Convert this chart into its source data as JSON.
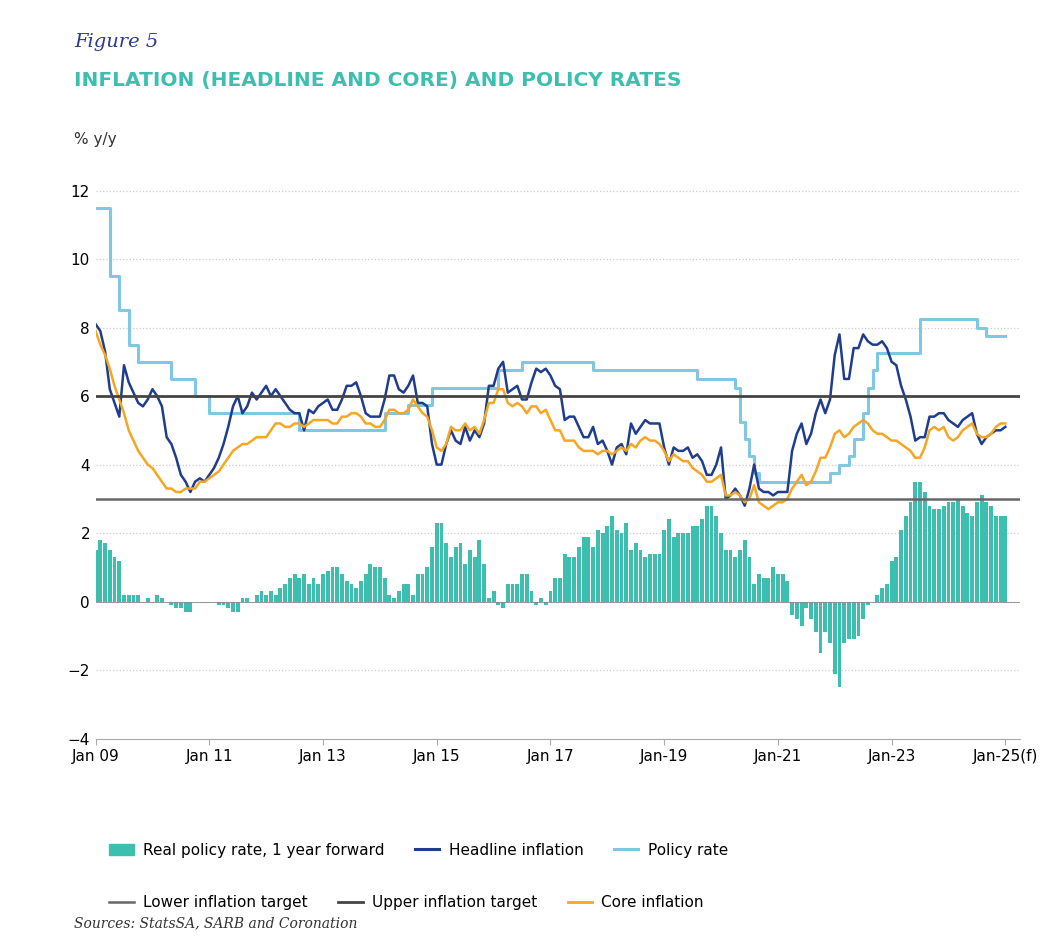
{
  "title_figure": "Figure 5",
  "title_main": "INFLATION (HEADLINE AND CORE) AND POLICY RATES",
  "ylabel": "% y/y",
  "source": "Sources: StatsSA, SARB and Coronation",
  "ylim": [
    -4,
    13
  ],
  "yticks": [
    -4,
    -2,
    0,
    2,
    4,
    6,
    8,
    10,
    12
  ],
  "lower_target": 3,
  "upper_target": 6,
  "colors": {
    "headline": "#1f3d8c",
    "policy_rate": "#7ec8e3",
    "core": "#f5a623",
    "real_policy": "#3dbfb0",
    "lower_target": "#666666",
    "upper_target": "#444444",
    "background": "#ffffff",
    "grid": "#cccccc",
    "title_figure": "#2d3a8c",
    "title_main": "#3dbfb0"
  },
  "xtick_labels": [
    "Jan 09",
    "Jan 11",
    "Jan 13",
    "Jan 15",
    "Jan 17",
    "Jan-19",
    "Jan-21",
    "Jan-23",
    "Jan-25(f)"
  ],
  "xtick_positions": [
    2009.0,
    2011.0,
    2013.0,
    2015.0,
    2017.0,
    2019.0,
    2021.0,
    2023.0,
    2025.0
  ],
  "headline_inflation_dates": [
    2009.0,
    2009.083,
    2009.167,
    2009.25,
    2009.333,
    2009.417,
    2009.5,
    2009.583,
    2009.667,
    2009.75,
    2009.833,
    2009.917,
    2010.0,
    2010.083,
    2010.167,
    2010.25,
    2010.333,
    2010.417,
    2010.5,
    2010.583,
    2010.667,
    2010.75,
    2010.833,
    2010.917,
    2011.0,
    2011.083,
    2011.167,
    2011.25,
    2011.333,
    2011.417,
    2011.5,
    2011.583,
    2011.667,
    2011.75,
    2011.833,
    2011.917,
    2012.0,
    2012.083,
    2012.167,
    2012.25,
    2012.333,
    2012.417,
    2012.5,
    2012.583,
    2012.667,
    2012.75,
    2012.833,
    2012.917,
    2013.0,
    2013.083,
    2013.167,
    2013.25,
    2013.333,
    2013.417,
    2013.5,
    2013.583,
    2013.667,
    2013.75,
    2013.833,
    2013.917,
    2014.0,
    2014.083,
    2014.167,
    2014.25,
    2014.333,
    2014.417,
    2014.5,
    2014.583,
    2014.667,
    2014.75,
    2014.833,
    2014.917,
    2015.0,
    2015.083,
    2015.167,
    2015.25,
    2015.333,
    2015.417,
    2015.5,
    2015.583,
    2015.667,
    2015.75,
    2015.833,
    2015.917,
    2016.0,
    2016.083,
    2016.167,
    2016.25,
    2016.333,
    2016.417,
    2016.5,
    2016.583,
    2016.667,
    2016.75,
    2016.833,
    2016.917,
    2017.0,
    2017.083,
    2017.167,
    2017.25,
    2017.333,
    2017.417,
    2017.5,
    2017.583,
    2017.667,
    2017.75,
    2017.833,
    2017.917,
    2018.0,
    2018.083,
    2018.167,
    2018.25,
    2018.333,
    2018.417,
    2018.5,
    2018.583,
    2018.667,
    2018.75,
    2018.833,
    2018.917,
    2019.0,
    2019.083,
    2019.167,
    2019.25,
    2019.333,
    2019.417,
    2019.5,
    2019.583,
    2019.667,
    2019.75,
    2019.833,
    2019.917,
    2020.0,
    2020.083,
    2020.167,
    2020.25,
    2020.333,
    2020.417,
    2020.5,
    2020.583,
    2020.667,
    2020.75,
    2020.833,
    2020.917,
    2021.0,
    2021.083,
    2021.167,
    2021.25,
    2021.333,
    2021.417,
    2021.5,
    2021.583,
    2021.667,
    2021.75,
    2021.833,
    2021.917,
    2022.0,
    2022.083,
    2022.167,
    2022.25,
    2022.333,
    2022.417,
    2022.5,
    2022.583,
    2022.667,
    2022.75,
    2022.833,
    2022.917,
    2023.0,
    2023.083,
    2023.167,
    2023.25,
    2023.333,
    2023.417,
    2023.5,
    2023.583,
    2023.667,
    2023.75,
    2023.833,
    2023.917,
    2024.0,
    2024.083,
    2024.167,
    2024.25,
    2024.333,
    2024.417,
    2024.5,
    2024.583,
    2024.667,
    2024.75,
    2024.833,
    2024.917,
    2025.0
  ],
  "headline_inflation_values": [
    8.1,
    7.9,
    7.3,
    6.2,
    5.8,
    5.4,
    6.9,
    6.4,
    6.1,
    5.8,
    5.7,
    5.9,
    6.2,
    6.0,
    5.7,
    4.8,
    4.6,
    4.2,
    3.7,
    3.5,
    3.2,
    3.5,
    3.6,
    3.5,
    3.7,
    3.9,
    4.2,
    4.6,
    5.1,
    5.7,
    6.0,
    5.5,
    5.7,
    6.1,
    5.9,
    6.1,
    6.3,
    6.0,
    6.2,
    6.0,
    5.8,
    5.6,
    5.5,
    5.5,
    5.0,
    5.6,
    5.5,
    5.7,
    5.8,
    5.9,
    5.6,
    5.6,
    5.9,
    6.3,
    6.3,
    6.4,
    6.0,
    5.5,
    5.4,
    5.4,
    5.4,
    5.9,
    6.6,
    6.6,
    6.2,
    6.1,
    6.3,
    6.6,
    5.8,
    5.8,
    5.7,
    4.6,
    4.0,
    4.0,
    4.6,
    5.0,
    4.7,
    4.6,
    5.1,
    4.7,
    5.0,
    4.8,
    5.2,
    6.3,
    6.3,
    6.8,
    7.0,
    6.1,
    6.2,
    6.3,
    5.9,
    5.9,
    6.4,
    6.8,
    6.7,
    6.8,
    6.6,
    6.3,
    6.2,
    5.3,
    5.4,
    5.4,
    5.1,
    4.8,
    4.8,
    5.1,
    4.6,
    4.7,
    4.4,
    4.0,
    4.5,
    4.6,
    4.3,
    5.2,
    4.9,
    5.1,
    5.3,
    5.2,
    5.2,
    5.2,
    4.5,
    4.0,
    4.5,
    4.4,
    4.4,
    4.5,
    4.2,
    4.3,
    4.1,
    3.7,
    3.7,
    4.0,
    4.5,
    3.0,
    3.1,
    3.3,
    3.1,
    2.8,
    3.3,
    4.0,
    3.3,
    3.2,
    3.2,
    3.1,
    3.2,
    3.2,
    3.2,
    4.4,
    4.9,
    5.2,
    4.6,
    4.9,
    5.5,
    5.9,
    5.5,
    5.9,
    7.2,
    7.8,
    6.5,
    6.5,
    7.4,
    7.4,
    7.8,
    7.6,
    7.5,
    7.5,
    7.6,
    7.4,
    7.0,
    6.9,
    6.3,
    5.9,
    5.4,
    4.7,
    4.8,
    4.8,
    5.4,
    5.4,
    5.5,
    5.5,
    5.3,
    5.2,
    5.1,
    5.3,
    5.4,
    5.5,
    4.9,
    4.6,
    4.8,
    4.9,
    5.0,
    5.0,
    5.1
  ],
  "policy_rate_dates": [
    2009.0,
    2009.25,
    2009.417,
    2009.583,
    2009.75,
    2009.917,
    2010.0,
    2010.333,
    2010.75,
    2011.0,
    2011.417,
    2011.667,
    2011.917,
    2012.0,
    2012.583,
    2012.833,
    2013.0,
    2013.25,
    2013.5,
    2013.75,
    2014.0,
    2014.083,
    2014.25,
    2014.5,
    2014.75,
    2014.917,
    2015.0,
    2015.25,
    2015.5,
    2016.0,
    2016.083,
    2016.5,
    2016.917,
    2017.0,
    2017.75,
    2017.917,
    2018.0,
    2018.5,
    2018.75,
    2018.917,
    2019.0,
    2019.583,
    2019.917,
    2020.0,
    2020.25,
    2020.333,
    2020.417,
    2020.5,
    2020.583,
    2020.667,
    2020.833,
    2021.0,
    2021.5,
    2021.75,
    2021.917,
    2022.0,
    2022.083,
    2022.25,
    2022.333,
    2022.5,
    2022.583,
    2022.667,
    2022.75,
    2022.833,
    2022.917,
    2023.0,
    2023.5,
    2023.583,
    2023.75,
    2023.917,
    2024.0,
    2024.5,
    2024.667,
    2024.917,
    2025.0
  ],
  "policy_rate_values": [
    11.5,
    9.5,
    8.5,
    7.5,
    7.0,
    7.0,
    7.0,
    6.5,
    6.0,
    5.5,
    5.5,
    5.5,
    5.5,
    5.5,
    5.0,
    5.0,
    5.0,
    5.0,
    5.0,
    5.0,
    5.0,
    5.5,
    5.5,
    5.75,
    5.75,
    6.25,
    6.25,
    6.25,
    6.25,
    6.25,
    6.75,
    7.0,
    7.0,
    7.0,
    6.75,
    6.75,
    6.75,
    6.75,
    6.75,
    6.75,
    6.75,
    6.5,
    6.5,
    6.5,
    6.25,
    5.25,
    4.75,
    4.25,
    3.75,
    3.5,
    3.5,
    3.5,
    3.5,
    3.5,
    3.75,
    3.75,
    4.0,
    4.25,
    4.75,
    5.5,
    6.25,
    6.75,
    7.25,
    7.25,
    7.25,
    7.25,
    8.25,
    8.25,
    8.25,
    8.25,
    8.25,
    8.0,
    7.75,
    7.75,
    7.75
  ],
  "core_inflation_dates": [
    2009.0,
    2009.083,
    2009.167,
    2009.25,
    2009.333,
    2009.417,
    2009.5,
    2009.583,
    2009.667,
    2009.75,
    2009.833,
    2009.917,
    2010.0,
    2010.083,
    2010.167,
    2010.25,
    2010.333,
    2010.417,
    2010.5,
    2010.583,
    2010.667,
    2010.75,
    2010.833,
    2010.917,
    2011.0,
    2011.083,
    2011.167,
    2011.25,
    2011.333,
    2011.417,
    2011.5,
    2011.583,
    2011.667,
    2011.75,
    2011.833,
    2011.917,
    2012.0,
    2012.083,
    2012.167,
    2012.25,
    2012.333,
    2012.417,
    2012.5,
    2012.583,
    2012.667,
    2012.75,
    2012.833,
    2012.917,
    2013.0,
    2013.083,
    2013.167,
    2013.25,
    2013.333,
    2013.417,
    2013.5,
    2013.583,
    2013.667,
    2013.75,
    2013.833,
    2013.917,
    2014.0,
    2014.083,
    2014.167,
    2014.25,
    2014.333,
    2014.417,
    2014.5,
    2014.583,
    2014.667,
    2014.75,
    2014.833,
    2014.917,
    2015.0,
    2015.083,
    2015.167,
    2015.25,
    2015.333,
    2015.417,
    2015.5,
    2015.583,
    2015.667,
    2015.75,
    2015.833,
    2015.917,
    2016.0,
    2016.083,
    2016.167,
    2016.25,
    2016.333,
    2016.417,
    2016.5,
    2016.583,
    2016.667,
    2016.75,
    2016.833,
    2016.917,
    2017.0,
    2017.083,
    2017.167,
    2017.25,
    2017.333,
    2017.417,
    2017.5,
    2017.583,
    2017.667,
    2017.75,
    2017.833,
    2017.917,
    2018.0,
    2018.083,
    2018.167,
    2018.25,
    2018.333,
    2018.417,
    2018.5,
    2018.583,
    2018.667,
    2018.75,
    2018.833,
    2018.917,
    2019.0,
    2019.083,
    2019.167,
    2019.25,
    2019.333,
    2019.417,
    2019.5,
    2019.583,
    2019.667,
    2019.75,
    2019.833,
    2019.917,
    2020.0,
    2020.083,
    2020.167,
    2020.25,
    2020.333,
    2020.417,
    2020.5,
    2020.583,
    2020.667,
    2020.75,
    2020.833,
    2020.917,
    2021.0,
    2021.083,
    2021.167,
    2021.25,
    2021.333,
    2021.417,
    2021.5,
    2021.583,
    2021.667,
    2021.75,
    2021.833,
    2021.917,
    2022.0,
    2022.083,
    2022.167,
    2022.25,
    2022.333,
    2022.417,
    2022.5,
    2022.583,
    2022.667,
    2022.75,
    2022.833,
    2022.917,
    2023.0,
    2023.083,
    2023.167,
    2023.25,
    2023.333,
    2023.417,
    2023.5,
    2023.583,
    2023.667,
    2023.75,
    2023.833,
    2023.917,
    2024.0,
    2024.083,
    2024.167,
    2024.25,
    2024.333,
    2024.417,
    2024.5,
    2024.583,
    2024.667,
    2024.75,
    2024.833,
    2024.917,
    2025.0
  ],
  "core_inflation_values": [
    7.9,
    7.5,
    7.2,
    6.8,
    6.3,
    5.9,
    5.5,
    5.0,
    4.7,
    4.4,
    4.2,
    4.0,
    3.9,
    3.7,
    3.5,
    3.3,
    3.3,
    3.2,
    3.2,
    3.3,
    3.3,
    3.3,
    3.5,
    3.5,
    3.6,
    3.7,
    3.8,
    4.0,
    4.2,
    4.4,
    4.5,
    4.6,
    4.6,
    4.7,
    4.8,
    4.8,
    4.8,
    5.0,
    5.2,
    5.2,
    5.1,
    5.1,
    5.2,
    5.2,
    5.1,
    5.2,
    5.3,
    5.3,
    5.3,
    5.3,
    5.2,
    5.2,
    5.4,
    5.4,
    5.5,
    5.5,
    5.4,
    5.2,
    5.2,
    5.1,
    5.1,
    5.3,
    5.6,
    5.6,
    5.5,
    5.5,
    5.6,
    5.9,
    5.7,
    5.5,
    5.4,
    5.0,
    4.5,
    4.4,
    4.6,
    5.1,
    5.0,
    5.0,
    5.2,
    5.0,
    5.1,
    4.9,
    5.3,
    5.8,
    5.8,
    6.2,
    6.2,
    5.8,
    5.7,
    5.8,
    5.7,
    5.5,
    5.7,
    5.7,
    5.5,
    5.6,
    5.3,
    5.0,
    5.0,
    4.7,
    4.7,
    4.7,
    4.5,
    4.4,
    4.4,
    4.4,
    4.3,
    4.4,
    4.4,
    4.3,
    4.4,
    4.5,
    4.4,
    4.6,
    4.5,
    4.7,
    4.8,
    4.7,
    4.7,
    4.6,
    4.4,
    4.1,
    4.3,
    4.2,
    4.1,
    4.1,
    3.9,
    3.8,
    3.7,
    3.5,
    3.5,
    3.6,
    3.7,
    3.1,
    3.1,
    3.2,
    3.1,
    2.9,
    3.0,
    3.4,
    2.9,
    2.8,
    2.7,
    2.8,
    2.9,
    2.9,
    3.0,
    3.3,
    3.5,
    3.7,
    3.4,
    3.5,
    3.8,
    4.2,
    4.2,
    4.5,
    4.9,
    5.0,
    4.8,
    4.9,
    5.1,
    5.2,
    5.3,
    5.2,
    5.0,
    4.9,
    4.9,
    4.8,
    4.7,
    4.7,
    4.6,
    4.5,
    4.4,
    4.2,
    4.2,
    4.5,
    5.0,
    5.1,
    5.0,
    5.1,
    4.8,
    4.7,
    4.8,
    5.0,
    5.1,
    5.2,
    4.9,
    4.8,
    4.8,
    4.9,
    5.1,
    5.2,
    5.2
  ],
  "real_policy_rate_dates": [
    2009.0,
    2009.083,
    2009.167,
    2009.25,
    2009.333,
    2009.417,
    2009.5,
    2009.583,
    2009.667,
    2009.75,
    2009.833,
    2009.917,
    2010.0,
    2010.083,
    2010.167,
    2010.25,
    2010.333,
    2010.417,
    2010.5,
    2010.583,
    2010.667,
    2010.75,
    2010.833,
    2010.917,
    2011.0,
    2011.083,
    2011.167,
    2011.25,
    2011.333,
    2011.417,
    2011.5,
    2011.583,
    2011.667,
    2011.75,
    2011.833,
    2011.917,
    2012.0,
    2012.083,
    2012.167,
    2012.25,
    2012.333,
    2012.417,
    2012.5,
    2012.583,
    2012.667,
    2012.75,
    2012.833,
    2012.917,
    2013.0,
    2013.083,
    2013.167,
    2013.25,
    2013.333,
    2013.417,
    2013.5,
    2013.583,
    2013.667,
    2013.75,
    2013.833,
    2013.917,
    2014.0,
    2014.083,
    2014.167,
    2014.25,
    2014.333,
    2014.417,
    2014.5,
    2014.583,
    2014.667,
    2014.75,
    2014.833,
    2014.917,
    2015.0,
    2015.083,
    2015.167,
    2015.25,
    2015.333,
    2015.417,
    2015.5,
    2015.583,
    2015.667,
    2015.75,
    2015.833,
    2015.917,
    2016.0,
    2016.083,
    2016.167,
    2016.25,
    2016.333,
    2016.417,
    2016.5,
    2016.583,
    2016.667,
    2016.75,
    2016.833,
    2016.917,
    2017.0,
    2017.083,
    2017.167,
    2017.25,
    2017.333,
    2017.417,
    2017.5,
    2017.583,
    2017.667,
    2017.75,
    2017.833,
    2017.917,
    2018.0,
    2018.083,
    2018.167,
    2018.25,
    2018.333,
    2018.417,
    2018.5,
    2018.583,
    2018.667,
    2018.75,
    2018.833,
    2018.917,
    2019.0,
    2019.083,
    2019.167,
    2019.25,
    2019.333,
    2019.417,
    2019.5,
    2019.583,
    2019.667,
    2019.75,
    2019.833,
    2019.917,
    2020.0,
    2020.083,
    2020.167,
    2020.25,
    2020.333,
    2020.417,
    2020.5,
    2020.583,
    2020.667,
    2020.75,
    2020.833,
    2020.917,
    2021.0,
    2021.083,
    2021.167,
    2021.25,
    2021.333,
    2021.417,
    2021.5,
    2021.583,
    2021.667,
    2021.75,
    2021.833,
    2021.917,
    2022.0,
    2022.083,
    2022.167,
    2022.25,
    2022.333,
    2022.417,
    2022.5,
    2022.583,
    2022.667,
    2022.75,
    2022.833,
    2022.917,
    2023.0,
    2023.083,
    2023.167,
    2023.25,
    2023.333,
    2023.417,
    2023.5,
    2023.583,
    2023.667,
    2023.75,
    2023.833,
    2023.917,
    2024.0,
    2024.083,
    2024.167,
    2024.25,
    2024.333,
    2024.417,
    2024.5,
    2024.583,
    2024.667,
    2024.75,
    2024.833,
    2024.917,
    2025.0
  ],
  "real_policy_rate_values": [
    1.5,
    1.8,
    1.7,
    1.5,
    1.3,
    1.2,
    0.2,
    0.2,
    0.2,
    0.2,
    0.0,
    0.1,
    0.0,
    0.2,
    0.1,
    0.0,
    -0.1,
    -0.2,
    -0.2,
    -0.3,
    -0.3,
    0.0,
    0.0,
    0.0,
    0.0,
    0.0,
    -0.1,
    -0.1,
    -0.2,
    -0.3,
    -0.3,
    0.1,
    0.1,
    0.0,
    0.2,
    0.3,
    0.2,
    0.3,
    0.2,
    0.4,
    0.5,
    0.7,
    0.8,
    0.7,
    0.8,
    0.5,
    0.7,
    0.5,
    0.8,
    0.9,
    1.0,
    1.0,
    0.8,
    0.6,
    0.5,
    0.4,
    0.6,
    0.8,
    1.1,
    1.0,
    1.0,
    0.7,
    0.2,
    0.1,
    0.3,
    0.5,
    0.5,
    0.2,
    0.8,
    0.8,
    1.0,
    1.6,
    2.3,
    2.3,
    1.7,
    1.3,
    1.6,
    1.7,
    1.1,
    1.5,
    1.3,
    1.8,
    1.1,
    0.1,
    0.3,
    -0.1,
    -0.2,
    0.5,
    0.5,
    0.5,
    0.8,
    0.8,
    0.3,
    -0.1,
    0.1,
    -0.1,
    0.3,
    0.7,
    0.7,
    1.4,
    1.3,
    1.3,
    1.6,
    1.9,
    1.9,
    1.6,
    2.1,
    2.0,
    2.2,
    2.5,
    2.1,
    2.0,
    2.3,
    1.5,
    1.7,
    1.5,
    1.3,
    1.4,
    1.4,
    1.4,
    2.1,
    2.4,
    1.9,
    2.0,
    2.0,
    2.0,
    2.2,
    2.2,
    2.4,
    2.8,
    2.8,
    2.5,
    2.0,
    1.5,
    1.5,
    1.3,
    1.5,
    1.8,
    1.3,
    0.5,
    0.8,
    0.7,
    0.7,
    1.0,
    0.8,
    0.8,
    0.6,
    -0.4,
    -0.5,
    -0.7,
    -0.2,
    -0.5,
    -0.9,
    -1.5,
    -0.9,
    -1.2,
    -2.1,
    -2.5,
    -1.2,
    -1.1,
    -1.1,
    -1.0,
    -0.5,
    -0.1,
    0.0,
    0.2,
    0.4,
    0.5,
    1.2,
    1.3,
    2.1,
    2.5,
    2.9,
    3.5,
    3.5,
    3.2,
    2.8,
    2.7,
    2.7,
    2.8,
    2.9,
    2.9,
    3.0,
    2.8,
    2.6,
    2.5,
    2.9,
    3.1,
    2.9,
    2.8,
    2.5,
    2.5,
    2.5
  ]
}
